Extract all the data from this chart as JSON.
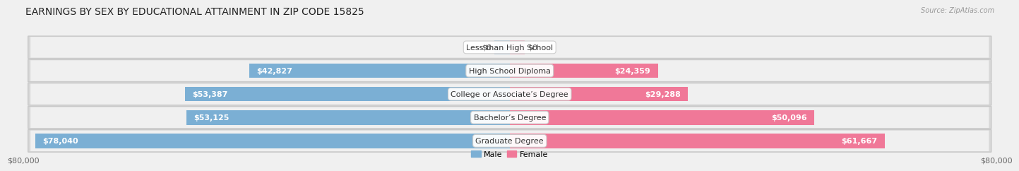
{
  "title": "EARNINGS BY SEX BY EDUCATIONAL ATTAINMENT IN ZIP CODE 15825",
  "source": "Source: ZipAtlas.com",
  "categories": [
    "Less than High School",
    "High School Diploma",
    "College or Associate’s Degree",
    "Bachelor’s Degree",
    "Graduate Degree"
  ],
  "male_values": [
    0,
    42827,
    53387,
    53125,
    78040
  ],
  "female_values": [
    0,
    24359,
    29288,
    50096,
    61667
  ],
  "male_color": "#7bafd4",
  "female_color": "#f07898",
  "male_label_inside_color": "white",
  "female_label_inside_color": "white",
  "male_label_outside_color": "#555555",
  "female_label_outside_color": "#555555",
  "max_value": 80000,
  "axis_label_left": "$80,000",
  "axis_label_right": "$80,000",
  "title_fontsize": 10,
  "source_fontsize": 7,
  "label_fontsize": 8,
  "category_fontsize": 8,
  "bar_height": 0.62,
  "row_bg_color": "#ebebeb",
  "row_inner_color": "#f8f8f8",
  "inside_threshold": 15000,
  "zero_nudge": 3000
}
